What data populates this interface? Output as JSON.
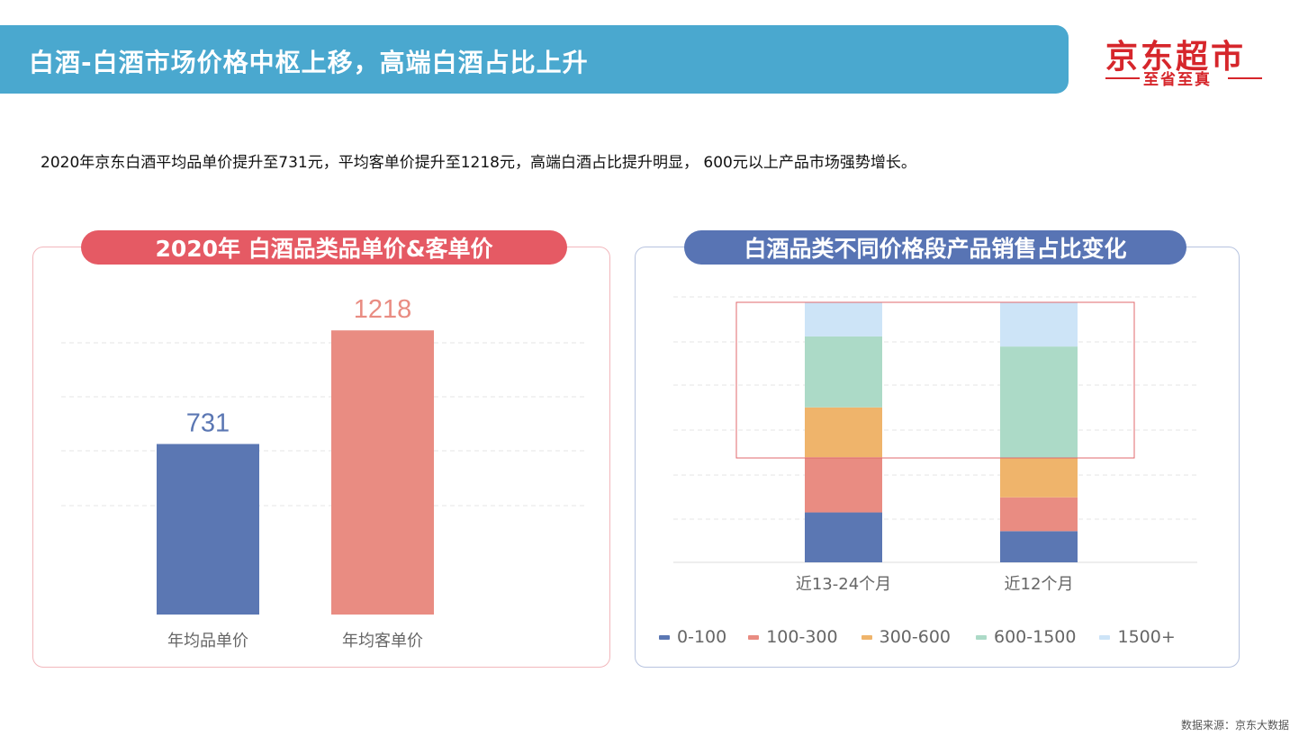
{
  "header": {
    "title": "白酒-白酒市场价格中枢上移，高端白酒占比上升",
    "logo_main": "京东超市",
    "logo_sub": "至省至真"
  },
  "summary": "2020年京东白酒平均品单价提升至731元，平均客单价提升至1218元，高端白酒占比提升明显， 600元以上产品市场强势增长。",
  "source": "数据来源：京东大数据",
  "colors": {
    "title_bar": "#4aa8cf",
    "brand_red": "#d6262b",
    "pill_left": "#e55a64",
    "pill_right": "#5874b4"
  },
  "chart_data": [
    {
      "type": "bar",
      "title": "2020年 白酒品类品单价&客单价",
      "categories": [
        "年均品单价",
        "年均客单价"
      ],
      "values": [
        731,
        1218
      ],
      "value_labels": [
        "731",
        "1218"
      ],
      "colors": [
        "#5b77b3",
        "#e98c82"
      ],
      "ylim": [
        0,
        1400
      ],
      "grid": true
    },
    {
      "type": "bar",
      "stacked": true,
      "percent": true,
      "title": "白酒品类不同价格段产品销售占比变化",
      "categories": [
        "近13-24个月",
        "近12个月"
      ],
      "series": [
        {
          "name": "0-100",
          "color": "#5b77b3",
          "values": [
            19,
            12
          ]
        },
        {
          "name": "100-300",
          "color": "#e98c82",
          "values": [
            21,
            13
          ]
        },
        {
          "name": "300-600",
          "color": "#efb46b",
          "values": [
            19,
            15
          ]
        },
        {
          "name": "600-1500",
          "color": "#acdac7",
          "values": [
            27,
            43
          ]
        },
        {
          "name": "1500+",
          "color": "#cde4f7",
          "values": [
            13,
            17
          ]
        }
      ],
      "ylim": [
        0,
        100
      ],
      "legend_position": "bottom",
      "grid": true,
      "highlight_box": true
    }
  ]
}
